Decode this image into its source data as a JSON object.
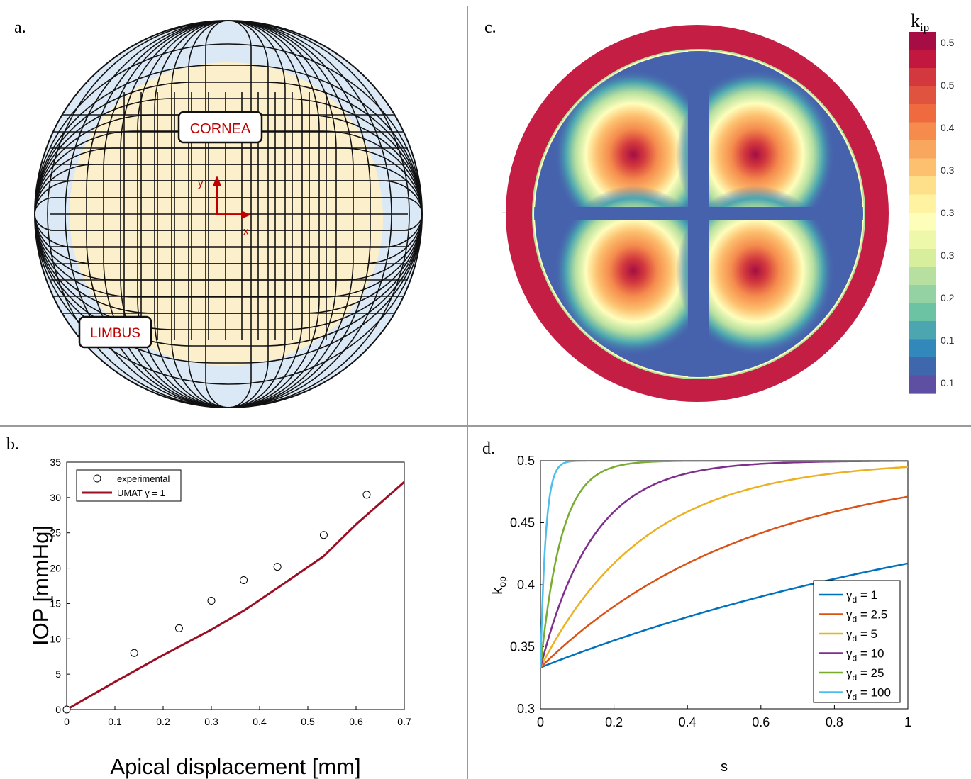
{
  "panels": {
    "a": {
      "letter": "a.",
      "labels": {
        "cornea": "CORNEA",
        "limbus": "LIMBUS",
        "axis_x": "x",
        "axis_y": "y"
      },
      "colors": {
        "outer_ring": "#dbe8f5",
        "cornea": "#fcefcc",
        "grid": "#111111",
        "axis": "#c00000",
        "label_text": "#c00000"
      }
    },
    "b": {
      "letter": "b."
    },
    "c": {
      "letter": "c.",
      "colorbar": {
        "title": "k",
        "title_sub": "ip",
        "ticks": [
          "0.5",
          "0.5",
          "0.4",
          "0.3",
          "0.3",
          "0.3",
          "0.2",
          "0.1",
          "0.1"
        ],
        "colors": [
          "#a50d44",
          "#c2173f",
          "#d2383d",
          "#e0533e",
          "#ef6a3e",
          "#f58b4d",
          "#f9a65e",
          "#fdc06f",
          "#fee08b",
          "#fff2a1",
          "#fefebb",
          "#eef8aa",
          "#d7ee9d",
          "#b7e0a0",
          "#94d2a3",
          "#6bc3a4",
          "#4ba6b0",
          "#3287bb",
          "#3f67ad",
          "#5e4fa2"
        ],
        "values_range": [
          0.1,
          0.5
        ]
      },
      "colors": {
        "ring": "#c41e45",
        "interior": "#4662ad"
      }
    },
    "d": {
      "letter": "d."
    }
  },
  "chart_data": [
    {
      "panel": "b",
      "type": "scatter+line",
      "xlabel": "Apical displacement [mm]",
      "ylabel": "IOP [mmHg]",
      "xlim": [
        0,
        0.7
      ],
      "ylim": [
        0,
        35
      ],
      "xticks": [
        "0",
        "0.1",
        "0.2",
        "0.3",
        "0.4",
        "0.5",
        "0.6",
        "0.7"
      ],
      "yticks": [
        "0",
        "5",
        "10",
        "15",
        "20",
        "25",
        "30",
        "35"
      ],
      "legend": {
        "placement": "top-left",
        "entries": [
          "experimental",
          "UMAT γ = 1"
        ]
      },
      "series": [
        {
          "name": "experimental",
          "kind": "markers",
          "color": "#000000",
          "x": [
            0,
            0.14,
            0.233,
            0.3,
            0.367,
            0.437,
            0.533,
            0.622
          ],
          "y": [
            0,
            8.0,
            11.5,
            15.4,
            18.3,
            20.2,
            24.7,
            30.4
          ]
        },
        {
          "name": "UMAT γ = 1",
          "kind": "line",
          "color": "#9a0f24",
          "x": [
            0,
            0.1,
            0.2,
            0.3,
            0.37,
            0.45,
            0.533,
            0.6,
            0.7
          ],
          "y": [
            0,
            3.9,
            7.7,
            11.3,
            14.1,
            17.8,
            21.7,
            26.2,
            32.2
          ]
        }
      ]
    },
    {
      "panel": "d",
      "type": "line",
      "xlabel": "s",
      "ylabel": "k",
      "ylabel_sub": "op",
      "xlim": [
        0,
        1
      ],
      "ylim": [
        0.3,
        0.5
      ],
      "xticks": [
        "0",
        "0.2",
        "0.4",
        "0.6",
        "0.8",
        "1"
      ],
      "yticks": [
        "0.3",
        "0.35",
        "0.4",
        "0.45",
        "0.5"
      ],
      "legend": {
        "placement": "bottom-right",
        "symbol": "γ",
        "sub": "d"
      },
      "series": [
        {
          "name_value": "1",
          "gamma": 1,
          "color": "#0072bd"
        },
        {
          "name_value": "2.5",
          "gamma": 2.5,
          "color": "#d95319"
        },
        {
          "name_value": "5",
          "gamma": 5,
          "color": "#edb120"
        },
        {
          "name_value": "10",
          "gamma": 10,
          "color": "#7e2f8e"
        },
        {
          "name_value": "25",
          "gamma": 25,
          "color": "#77ac30"
        },
        {
          "name_value": "100",
          "gamma": 100,
          "color": "#4dbeee"
        }
      ],
      "curve_model": {
        "start": 0.3333,
        "limit": 0.5
      }
    }
  ]
}
